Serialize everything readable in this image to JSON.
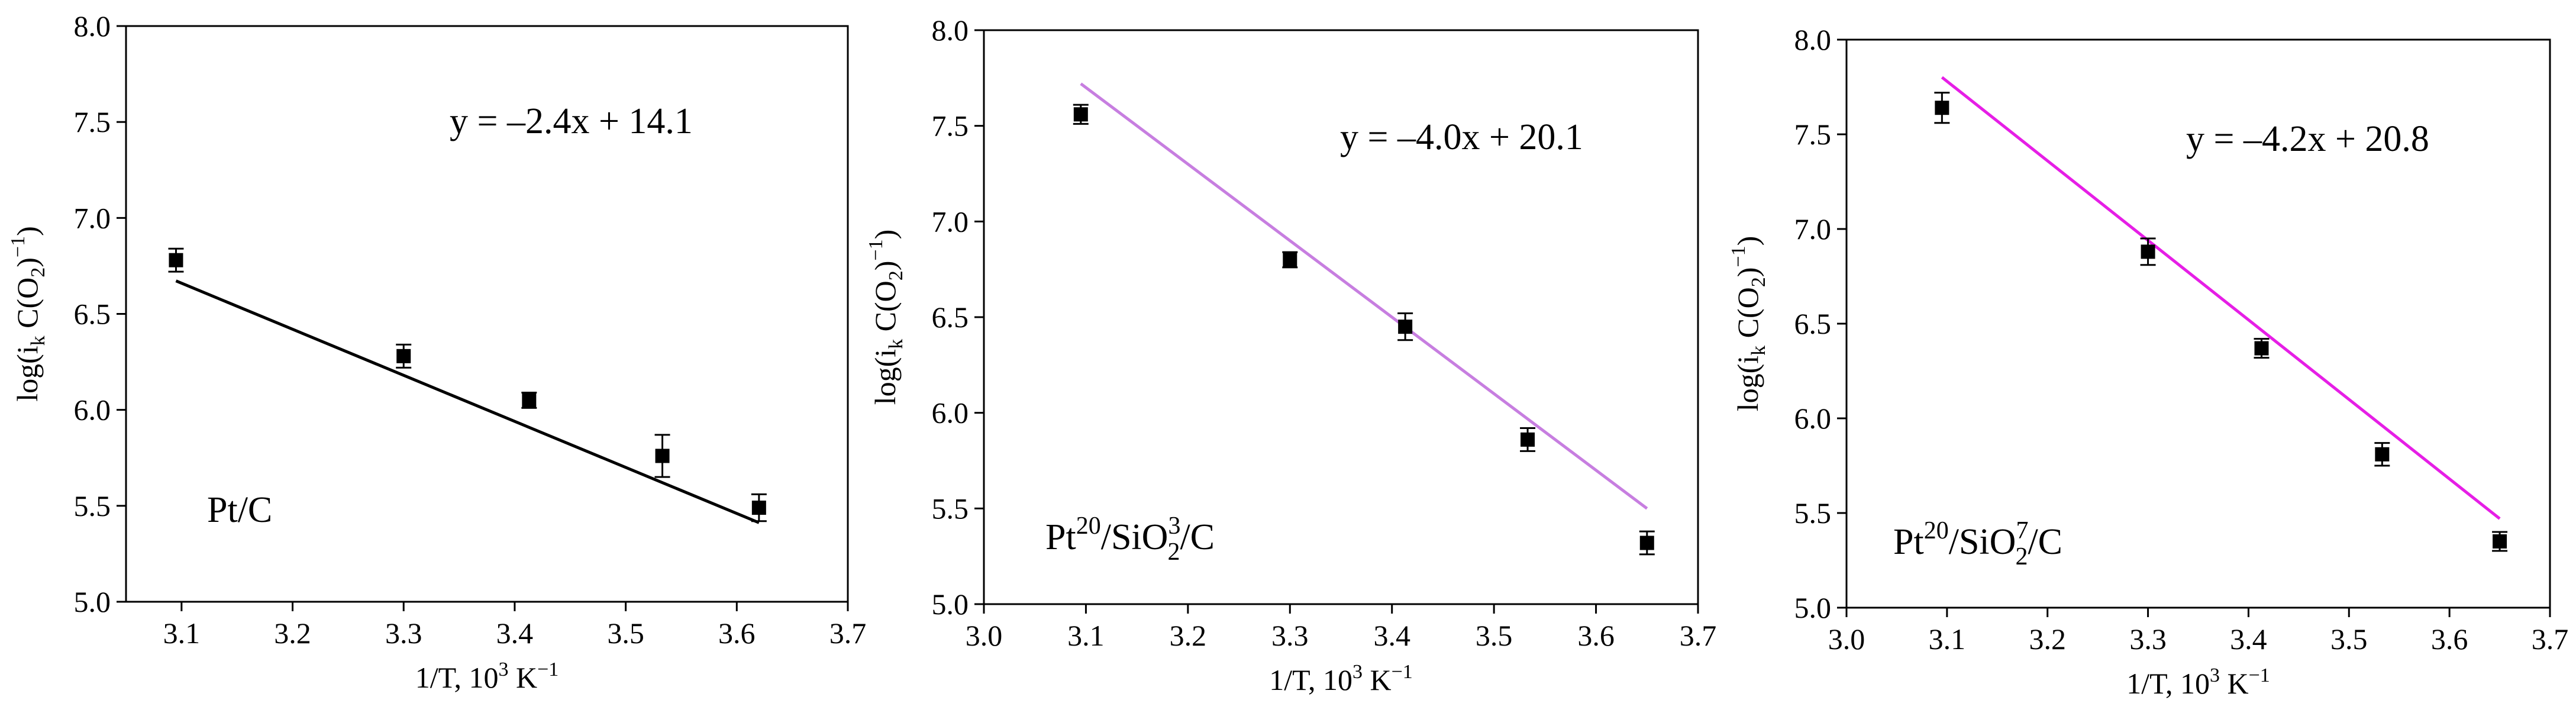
{
  "chart_data": [
    {
      "type": "scatter",
      "panel_label": {
        "base": "Pt/C",
        "sup": "",
        "sub": "",
        "tail": ""
      },
      "equation": "y = –2.4x + 14.1",
      "ylabel": {
        "pre": "log(i",
        "sub1": "k",
        "mid": " C(O",
        "sub2": "2",
        "post": ")",
        "sup": "−1",
        "end": ")"
      },
      "xlabel": {
        "pre": "1/T, 10",
        "sup1": "3",
        "mid": " K",
        "sup2": "−1"
      },
      "xlim": [
        3.05,
        3.7
      ],
      "ylim": [
        5.0,
        8.0
      ],
      "xticks": [
        "3.1",
        "3.2",
        "3.3",
        "3.4",
        "3.5",
        "3.6",
        "3.7"
      ],
      "yticks": [
        "5.0",
        "5.5",
        "6.0",
        "6.5",
        "7.0",
        "7.5",
        "8.0"
      ],
      "fit": {
        "slope": -2.4,
        "intercept": 14.1,
        "x_range": [
          3.095,
          3.62
        ],
        "color": "#000000"
      },
      "series": [
        {
          "x": [
            3.095,
            3.3,
            3.413,
            3.533,
            3.62
          ],
          "y": [
            6.78,
            6.28,
            6.05,
            5.76,
            5.49
          ],
          "err": [
            0.06,
            0.06,
            0.04,
            0.11,
            0.07
          ]
        }
      ],
      "marker_color": "#000000"
    },
    {
      "type": "scatter",
      "panel_label": {
        "base": "Pt",
        "sup": "20",
        "sub": "2",
        "tail": "/SiO",
        "supsub": "3",
        "end": "/C"
      },
      "equation": "y = –4.0x + 20.1",
      "ylabel": {
        "pre": "log(i",
        "sub1": "k",
        "mid": " C(O",
        "sub2": "2",
        "post": ")",
        "sup": "−1",
        "end": ")"
      },
      "xlabel": {
        "pre": "1/T, 10",
        "sup1": "3",
        "mid": " K",
        "sup2": "−1"
      },
      "xlim": [
        3.0,
        3.7
      ],
      "ylim": [
        5.0,
        8.0
      ],
      "xticks": [
        "3.0",
        "3.1",
        "3.2",
        "3.3",
        "3.4",
        "3.5",
        "3.6",
        "3.7"
      ],
      "yticks": [
        "5.0",
        "5.5",
        "6.0",
        "6.5",
        "7.0",
        "7.5",
        "8.0"
      ],
      "fit": {
        "slope": -4.0,
        "intercept": 20.1,
        "x_range": [
          3.095,
          3.65
        ],
        "color": "#c77ee0"
      },
      "series": [
        {
          "x": [
            3.095,
            3.3,
            3.413,
            3.533,
            3.65
          ],
          "y": [
            7.56,
            6.8,
            6.45,
            5.86,
            5.32
          ],
          "err": [
            0.05,
            0.04,
            0.07,
            0.06,
            0.06
          ]
        }
      ],
      "marker_color": "#000000"
    },
    {
      "type": "scatter",
      "panel_label": {
        "base": "Pt",
        "sup": "20",
        "sub": "2",
        "tail": "/SiO",
        "supsub": "7",
        "end": "/C"
      },
      "equation": "y = –4.2x + 20.8",
      "ylabel": {
        "pre": "log(i",
        "sub1": "k",
        "mid": " C(O",
        "sub2": "2",
        "post": ")",
        "sup": "−1",
        "end": ")"
      },
      "xlabel": {
        "pre": "1/T, 10",
        "sup1": "3",
        "mid": " K",
        "sup2": "−1"
      },
      "xlim": [
        3.0,
        3.7
      ],
      "ylim": [
        5.0,
        8.0
      ],
      "xticks": [
        "3.0",
        "3.1",
        "3.2",
        "3.3",
        "3.4",
        "3.5",
        "3.6",
        "3.7"
      ],
      "yticks": [
        "5.0",
        "5.5",
        "6.0",
        "6.5",
        "7.0",
        "7.5",
        "8.0"
      ],
      "fit": {
        "slope": -4.2,
        "intercept": 20.8,
        "x_range": [
          3.095,
          3.65
        ],
        "color": "#e61ee6"
      },
      "series": [
        {
          "x": [
            3.095,
            3.3,
            3.413,
            3.533,
            3.65
          ],
          "y": [
            7.64,
            6.88,
            6.37,
            5.81,
            5.35
          ],
          "err": [
            0.08,
            0.07,
            0.05,
            0.06,
            0.05
          ]
        }
      ],
      "marker_color": "#000000"
    }
  ]
}
